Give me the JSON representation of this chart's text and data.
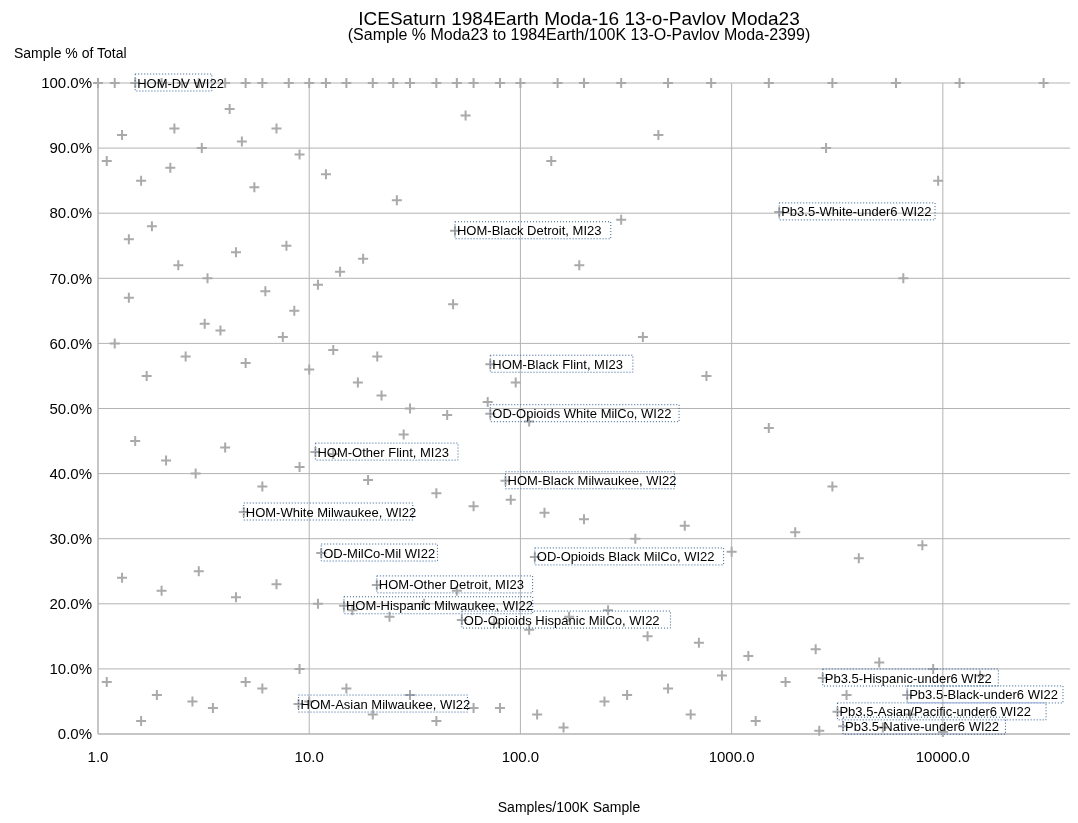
{
  "chart_data": {
    "type": "scatter",
    "title": "ICESaturn 1984Earth Moda-16 13-o-Pavlov Moda23",
    "subtitle": "(Sample % Moda23 to 1984Earth/100K 13-O-Pavlov Moda-2399)",
    "xlabel": "Samples/100K Sample",
    "ylabel": "Sample % of Total",
    "log": "x",
    "grid": true,
    "marker": "cross",
    "xlim": [
      1,
      40000
    ],
    "ylim": [
      0,
      100
    ],
    "xticks": [
      {
        "value": 1,
        "label": "1.0"
      },
      {
        "value": 10,
        "label": "10.0"
      },
      {
        "value": 100,
        "label": "100.0"
      },
      {
        "value": 1000,
        "label": "1000.0"
      },
      {
        "value": 10000,
        "label": "10000.0"
      }
    ],
    "yticks": [
      {
        "value": 0,
        "label": "0.0%"
      },
      {
        "value": 10,
        "label": "10.0%"
      },
      {
        "value": 20,
        "label": "20.0%"
      },
      {
        "value": 30,
        "label": "30.0%"
      },
      {
        "value": 40,
        "label": "40.0%"
      },
      {
        "value": 50,
        "label": "50.0%"
      },
      {
        "value": 60,
        "label": "60.0%"
      },
      {
        "value": 70,
        "label": "70.0%"
      },
      {
        "value": 80,
        "label": "80.0%"
      },
      {
        "value": 90,
        "label": "90.0%"
      },
      {
        "value": 100,
        "label": "100.0%"
      }
    ],
    "series": [
      {
        "color": "#aaaaaa",
        "x": [
          1,
          1.2,
          1.5,
          2,
          2.5,
          3,
          4,
          5,
          6,
          8,
          10,
          12,
          15,
          20,
          25,
          30,
          40,
          50,
          60,
          80,
          100,
          150,
          200,
          300,
          500,
          800,
          1500,
          3000,
          6000,
          12000,
          30000,
          1.1,
          1.3,
          1.6,
          2.2,
          3.1,
          4.2,
          5.5,
          7,
          9,
          1.4,
          1.8,
          2.4,
          3.3,
          4.5,
          6.2,
          8.5,
          11,
          14,
          18,
          1.2,
          1.7,
          2.6,
          3.8,
          5,
          7.5,
          10,
          13,
          17,
          22,
          30,
          45,
          70,
          110,
          1.5,
          2.1,
          2.9,
          4,
          6,
          9,
          13,
          19,
          28,
          40,
          60,
          90,
          130,
          200,
          350,
          600,
          1000,
          2000,
          4000,
          8000,
          1.3,
          2,
          3,
          4.5,
          7,
          11,
          16,
          24,
          35,
          50,
          75,
          110,
          170,
          260,
          400,
          700,
          1200,
          2500,
          5000,
          9000,
          15000,
          1.1,
          1.9,
          3.5,
          6,
          10,
          20,
          40,
          80,
          160,
          320,
          640,
          1300,
          2600,
          5200,
          10000,
          1.6,
          2.8,
          5,
          9,
          15,
          30,
          60,
          120,
          250,
          500,
          900,
          1800,
          3500,
          7000,
          2.3,
          4.8,
          12,
          26,
          55,
          140,
          300,
          450,
          2800,
          9500,
          1.4,
          3.2,
          7.8,
          21,
          48,
          95,
          190,
          380,
          760,
          1500,
          3000,
          6500,
          49,
          1680,
          72,
          72,
          10.7,
          85,
          4.9,
          11.4,
          117,
          20.9,
          14.6,
          52.8,
          2700,
          6780,
          3170,
          3370,
          8.9
        ],
        "values": [
          100,
          100,
          100,
          100,
          100,
          100,
          100,
          100,
          100,
          100,
          100,
          100,
          100,
          100,
          100,
          100,
          100,
          100,
          100,
          100,
          100,
          100,
          100,
          100,
          100,
          100,
          100,
          100,
          100,
          100,
          100,
          88,
          92,
          85,
          87,
          90,
          96,
          84,
          93,
          89,
          76,
          78,
          72,
          70,
          74,
          68,
          65,
          69,
          71,
          73,
          60,
          55,
          58,
          62,
          57,
          61,
          56,
          59,
          54,
          52,
          50,
          49,
          51,
          48,
          45,
          42,
          40,
          44,
          38,
          41,
          43,
          39,
          46,
          37,
          35,
          36,
          34,
          33,
          30,
          32,
          28,
          31,
          27,
          29,
          24,
          22,
          25,
          21,
          23,
          20,
          19,
          18,
          20,
          22,
          17,
          16,
          18,
          19,
          15,
          14,
          12,
          13,
          11,
          10,
          9,
          8,
          6,
          4,
          7,
          5,
          3,
          2,
          4,
          1,
          6,
          3,
          2,
          0.5,
          1,
          0.3,
          2,
          5,
          8,
          10,
          7,
          6,
          4,
          3,
          5,
          7,
          9,
          8,
          6,
          3,
          93,
          91,
          86,
          82,
          95,
          88,
          79,
          92,
          90,
          85,
          67,
          63,
          75,
          58,
          66,
          54,
          72,
          61,
          55,
          47,
          38,
          70,
          77.3,
          80.2,
          56.8,
          49.2,
          43.3,
          38.9,
          34.1,
          27.8,
          27.2,
          22.9,
          19.7,
          17.5,
          8.6,
          6,
          3.4,
          1.2,
          4.6
        ]
      }
    ],
    "annotations": [
      {
        "text": "HOM-DV WI22",
        "x": 1.5,
        "y": 100
      },
      {
        "text": "HOM-Black Detroit, MI23",
        "x": 49,
        "y": 77.3
      },
      {
        "text": "Pb3.5-White-under6 WI22",
        "x": 1680,
        "y": 80.2
      },
      {
        "text": "HOM-Black Flint, MI23",
        "x": 72,
        "y": 56.8
      },
      {
        "text": "OD-Opioids White MilCo, WI22",
        "x": 72,
        "y": 49.2
      },
      {
        "text": "HOM-Other Flint, MI23",
        "x": 10.7,
        "y": 43.3
      },
      {
        "text": "HOM-Black Milwaukee, WI22",
        "x": 85,
        "y": 38.9
      },
      {
        "text": "HOM-White Milwaukee, WI22",
        "x": 4.9,
        "y": 34.1
      },
      {
        "text": "OD-MilCo-Mil WI22",
        "x": 11.4,
        "y": 27.8
      },
      {
        "text": "OD-Opioids Black MilCo, WI22",
        "x": 117,
        "y": 27.2
      },
      {
        "text": "HOM-Other Detroit, MI23",
        "x": 20.9,
        "y": 22.9
      },
      {
        "text": "HOM-Hispanic Milwaukee, WI22",
        "x": 14.6,
        "y": 19.7
      },
      {
        "text": "OD-Opioids Hispanic MilCo, WI22",
        "x": 52.8,
        "y": 17.5
      },
      {
        "text": "Pb3.5-Hispanic-under6 WI22",
        "x": 2700,
        "y": 8.6
      },
      {
        "text": "Pb3.5-Black-under6 WI22",
        "x": 6780,
        "y": 6
      },
      {
        "text": "Pb3.5-Asian/Pacific-under6 WI22",
        "x": 3170,
        "y": 3.4
      },
      {
        "text": "Pb3.5-Native-under6 WI22",
        "x": 3370,
        "y": 1.2
      },
      {
        "text": "HOM-Asian Milwaukee, WI22",
        "x": 8.9,
        "y": 4.6
      }
    ]
  }
}
